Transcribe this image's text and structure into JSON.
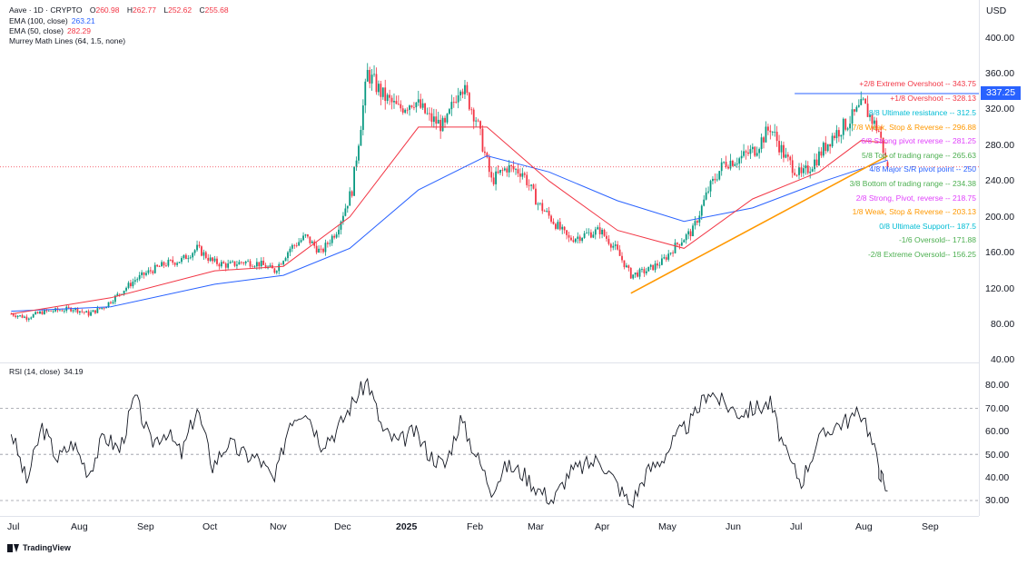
{
  "header": {
    "symbol": "Aave · 1D · CRYPTO",
    "currency": "USD",
    "ohlc": [
      {
        "label": "O",
        "value": "260.98"
      },
      {
        "label": "H",
        "value": "262.77"
      },
      {
        "label": "L",
        "value": "252.62"
      },
      {
        "label": "C",
        "value": "255.68"
      }
    ]
  },
  "indicators": [
    {
      "label": "EMA (100, close)",
      "value": "263.21",
      "color": "#2962ff"
    },
    {
      "label": "EMA (50, close)",
      "value": "282.29",
      "color": "#f23645"
    },
    {
      "label": "Murrey Math Lines (64, 1.5, none)",
      "value": "",
      "color": "#131722"
    }
  ],
  "rsi": {
    "label": "RSI (14, close)",
    "value": "34.19"
  },
  "price_badge": "337.25",
  "brand": "TradingView",
  "colors": {
    "up": "#089981",
    "down": "#f23645",
    "ema50": "#f23645",
    "ema100": "#2962ff",
    "trendline": "#ff9800",
    "badge": "#2962ff"
  },
  "murrey_levels": [
    {
      "text": "+2/8 Extreme Overshoot --  343.75",
      "color": "#f23645"
    },
    {
      "text": "+1/8 Overshoot --  328.13",
      "color": "#f23645"
    },
    {
      "text": "8/8 Ultimate resistance --  312.5",
      "color": "#00bcd4"
    },
    {
      "text": "7/8 Weak, Stop & Reverse --  296.88",
      "color": "#ff9800"
    },
    {
      "text": "6/8 Strong pivot reverse --  281.25",
      "color": "#e040fb"
    },
    {
      "text": "5/8 Top of trading range --  265.63",
      "color": "#4caf50"
    },
    {
      "text": "4/8 Major S/R pivot point --  250",
      "color": "#2962ff"
    },
    {
      "text": "3/8 Bottom of trading range --  234.38",
      "color": "#4caf50"
    },
    {
      "text": "2/8 Strong, Pivot, reverse --  218.75",
      "color": "#e040fb"
    },
    {
      "text": "1/8 Weak, Stop & Reverse --  203.13",
      "color": "#ff9800"
    },
    {
      "text": "0/8 Ultimate Support--  187.5",
      "color": "#00bcd4"
    },
    {
      "text": "-1/6 Oversold--  171.88",
      "color": "#4caf50"
    },
    {
      "text": "-2/8 Extreme Oversold--  156.25",
      "color": "#4caf50"
    }
  ],
  "chart_data": [
    {
      "type": "candlestick",
      "title": "Aave · 1D · CRYPTO",
      "ylabel": "USD",
      "x_ticks": [
        "Jul",
        "Aug",
        "Sep",
        "Oct",
        "Nov",
        "Dec",
        "2025",
        "Feb",
        "Mar",
        "Apr",
        "May",
        "Jun",
        "Jul",
        "Aug",
        "Sep"
      ],
      "y_ticks": [
        "400.00",
        "360.00",
        "320.00",
        "280.00",
        "240.00",
        "200.00",
        "160.00",
        "120.00",
        "80.00",
        "40.00"
      ],
      "ylim": [
        40,
        405
      ],
      "x_range": [
        "2024-06-28",
        "2025-09-10"
      ],
      "close_series": [
        [
          "2024-07-01",
          92
        ],
        [
          "2024-07-08",
          88
        ],
        [
          "2024-07-15",
          94
        ],
        [
          "2024-07-22",
          96
        ],
        [
          "2024-07-29",
          98
        ],
        [
          "2024-08-05",
          92
        ],
        [
          "2024-08-12",
          100
        ],
        [
          "2024-08-19",
          115
        ],
        [
          "2024-08-26",
          130
        ],
        [
          "2024-09-02",
          140
        ],
        [
          "2024-09-09",
          148
        ],
        [
          "2024-09-16",
          152
        ],
        [
          "2024-09-23",
          165
        ],
        [
          "2024-09-30",
          150
        ],
        [
          "2024-10-07",
          146
        ],
        [
          "2024-10-14",
          150
        ],
        [
          "2024-10-21",
          148
        ],
        [
          "2024-10-28",
          140
        ],
        [
          "2024-11-04",
          165
        ],
        [
          "2024-11-11",
          178
        ],
        [
          "2024-11-18",
          160
        ],
        [
          "2024-11-25",
          185
        ],
        [
          "2024-12-02",
          230
        ],
        [
          "2024-12-09",
          360
        ],
        [
          "2024-12-16",
          335
        ],
        [
          "2024-12-23",
          320
        ],
        [
          "2024-12-30",
          330
        ],
        [
          "2025-01-06",
          310
        ],
        [
          "2025-01-13",
          300
        ],
        [
          "2025-01-20",
          350
        ],
        [
          "2025-01-27",
          310
        ],
        [
          "2025-02-03",
          240
        ],
        [
          "2025-02-10",
          255
        ],
        [
          "2025-02-17",
          250
        ],
        [
          "2025-02-24",
          215
        ],
        [
          "2025-03-03",
          195
        ],
        [
          "2025-03-10",
          175
        ],
        [
          "2025-03-17",
          180
        ],
        [
          "2025-03-24",
          185
        ],
        [
          "2025-03-31",
          165
        ],
        [
          "2025-04-07",
          135
        ],
        [
          "2025-04-14",
          140
        ],
        [
          "2025-04-21",
          150
        ],
        [
          "2025-04-28",
          170
        ],
        [
          "2025-05-05",
          185
        ],
        [
          "2025-05-12",
          230
        ],
        [
          "2025-05-19",
          260
        ],
        [
          "2025-05-26",
          265
        ],
        [
          "2025-06-02",
          275
        ],
        [
          "2025-06-09",
          300
        ],
        [
          "2025-06-16",
          265
        ],
        [
          "2025-06-23",
          245
        ],
        [
          "2025-06-30",
          265
        ],
        [
          "2025-07-07",
          290
        ],
        [
          "2025-07-14",
          305
        ],
        [
          "2025-07-21",
          325
        ],
        [
          "2025-07-28",
          295
        ],
        [
          "2025-08-01",
          255.68
        ]
      ],
      "last_candle": {
        "open": 260.98,
        "high": 262.77,
        "low": 252.62,
        "close": 255.68
      },
      "series": [
        {
          "name": "EMA (100, close)",
          "last": 263.21,
          "values": [
            [
              "2024-07-01",
              95
            ],
            [
              "2024-08-15",
              100
            ],
            [
              "2024-10-01",
              125
            ],
            [
              "2024-11-01",
              135
            ],
            [
              "2024-12-01",
              165
            ],
            [
              "2025-01-01",
              230
            ],
            [
              "2025-02-01",
              268
            ],
            [
              "2025-03-01",
              250
            ],
            [
              "2025-04-01",
              218
            ],
            [
              "2025-05-01",
              195
            ],
            [
              "2025-06-01",
              210
            ],
            [
              "2025-07-01",
              238
            ],
            [
              "2025-08-01",
              263.21
            ]
          ]
        },
        {
          "name": "EMA (50, close)",
          "last": 282.29,
          "values": [
            [
              "2024-07-01",
              92
            ],
            [
              "2024-08-15",
              110
            ],
            [
              "2024-10-01",
              140
            ],
            [
              "2024-11-01",
              145
            ],
            [
              "2024-12-01",
              200
            ],
            [
              "2025-01-01",
              300
            ],
            [
              "2025-02-01",
              300
            ],
            [
              "2025-03-01",
              240
            ],
            [
              "2025-04-01",
              185
            ],
            [
              "2025-05-01",
              165
            ],
            [
              "2025-06-01",
              220
            ],
            [
              "2025-07-01",
              250
            ],
            [
              "2025-07-20",
              285
            ],
            [
              "2025-08-01",
              282.29
            ]
          ]
        }
      ],
      "trendline": {
        "from": [
          "2025-04-07",
          115
        ],
        "to": [
          "2025-08-01",
          268
        ]
      },
      "horizontal_line": {
        "value": 337.25,
        "from": "2025-06-20",
        "to": "2025-09-10"
      }
    },
    {
      "type": "line",
      "title": "RSI (14, close)",
      "y_ticks": [
        "80.00",
        "70.00",
        "60.00",
        "50.00",
        "40.00",
        "30.00"
      ],
      "ylim": [
        25,
        85
      ],
      "levels": [
        70,
        50,
        30
      ],
      "values": [
        [
          "2024-07-01",
          60
        ],
        [
          "2024-07-08",
          38
        ],
        [
          "2024-07-15",
          62
        ],
        [
          "2024-07-22",
          48
        ],
        [
          "2024-07-29",
          55
        ],
        [
          "2024-08-05",
          42
        ],
        [
          "2024-08-12",
          58
        ],
        [
          "2024-08-19",
          52
        ],
        [
          "2024-08-26",
          75
        ],
        [
          "2024-09-02",
          55
        ],
        [
          "2024-09-09",
          60
        ],
        [
          "2024-09-16",
          50
        ],
        [
          "2024-09-23",
          70
        ],
        [
          "2024-09-30",
          45
        ],
        [
          "2024-10-07",
          55
        ],
        [
          "2024-10-14",
          50
        ],
        [
          "2024-10-21",
          48
        ],
        [
          "2024-10-28",
          38
        ],
        [
          "2024-11-04",
          65
        ],
        [
          "2024-11-11",
          70
        ],
        [
          "2024-11-18",
          55
        ],
        [
          "2024-11-25",
          60
        ],
        [
          "2024-12-02",
          72
        ],
        [
          "2024-12-09",
          82
        ],
        [
          "2024-12-16",
          60
        ],
        [
          "2024-12-23",
          55
        ],
        [
          "2024-12-30",
          60
        ],
        [
          "2025-01-06",
          50
        ],
        [
          "2025-01-13",
          45
        ],
        [
          "2025-01-20",
          65
        ],
        [
          "2025-01-27",
          50
        ],
        [
          "2025-02-03",
          35
        ],
        [
          "2025-02-10",
          45
        ],
        [
          "2025-02-17",
          42
        ],
        [
          "2025-02-24",
          35
        ],
        [
          "2025-03-03",
          30
        ],
        [
          "2025-03-10",
          42
        ],
        [
          "2025-03-17",
          45
        ],
        [
          "2025-03-24",
          48
        ],
        [
          "2025-03-31",
          38
        ],
        [
          "2025-04-07",
          28
        ],
        [
          "2025-04-14",
          42
        ],
        [
          "2025-04-21",
          48
        ],
        [
          "2025-04-28",
          58
        ],
        [
          "2025-05-05",
          65
        ],
        [
          "2025-05-12",
          78
        ],
        [
          "2025-05-19",
          72
        ],
        [
          "2025-05-26",
          68
        ],
        [
          "2025-06-02",
          70
        ],
        [
          "2025-06-09",
          72
        ],
        [
          "2025-06-16",
          50
        ],
        [
          "2025-06-23",
          38
        ],
        [
          "2025-06-30",
          55
        ],
        [
          "2025-07-07",
          62
        ],
        [
          "2025-07-14",
          65
        ],
        [
          "2025-07-21",
          68
        ],
        [
          "2025-07-28",
          45
        ],
        [
          "2025-08-01",
          34.19
        ]
      ]
    }
  ]
}
